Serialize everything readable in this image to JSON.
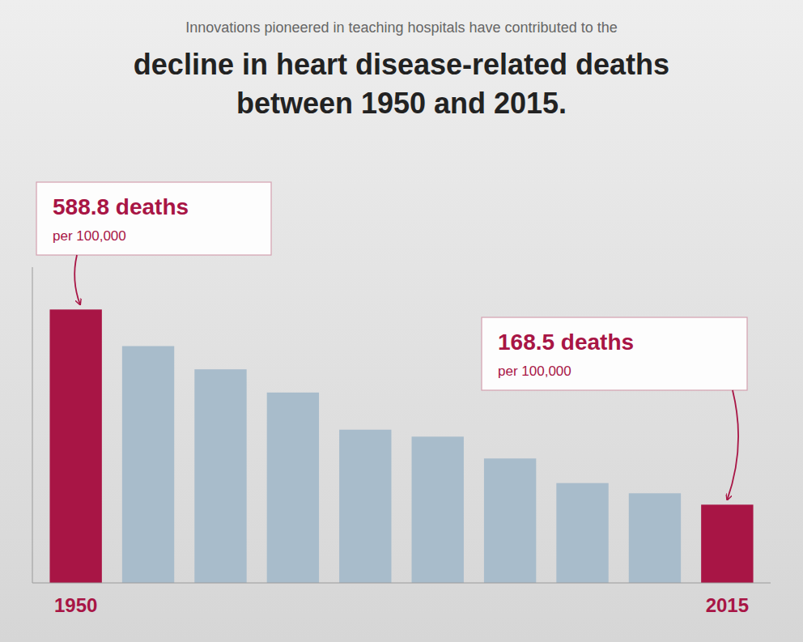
{
  "chart_data": {
    "type": "bar",
    "subtitle": "Innovations pioneered in teaching hospitals have contributed to the",
    "title": [
      "decline in heart disease-related deaths",
      "between 1950 and 2015."
    ],
    "categories": [
      "1950",
      null,
      null,
      null,
      null,
      null,
      null,
      null,
      null,
      "2015"
    ],
    "values": [
      588.8,
      510.0,
      460.0,
      410.0,
      330.0,
      315.0,
      268.0,
      215.0,
      193.0,
      168.5
    ],
    "colors": [
      "#A81545",
      "#A8BCCB",
      "#A8BCCB",
      "#A8BCCB",
      "#A8BCCB",
      "#A8BCCB",
      "#A8BCCB",
      "#A8BCCB",
      "#A8BCCB",
      "#A81545"
    ],
    "ylim": [
      0,
      680
    ],
    "tick_labels": "x",
    "grid": false,
    "annotations": [
      {
        "text": "588.8 deaths",
        "subtext": "per 100,000"
      },
      {
        "text": "168.5 deaths",
        "subtext": "per 100,000"
      }
    ]
  }
}
